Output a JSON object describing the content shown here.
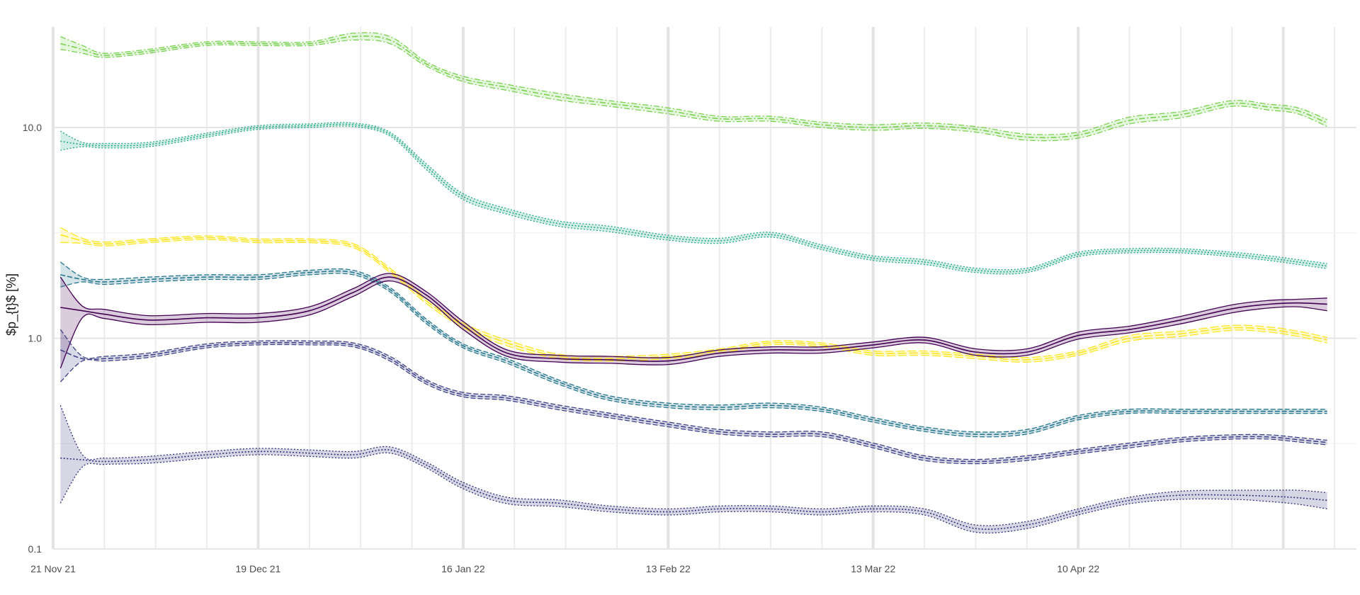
{
  "chart_data": {
    "type": "line",
    "title": "",
    "xlabel": "",
    "ylabel": "$p_{t}$ [%]",
    "y_scale": "log10",
    "ylim": [
      0.1,
      30
    ],
    "xlim": [
      "2021-11-21",
      "2022-05-18"
    ],
    "grid": true,
    "legend": "none",
    "x_ticks": [
      "21 Nov 21",
      "19 Dec 21",
      "16 Jan 22",
      "13 Feb 22",
      "13 Mar 22",
      "10 Apr 22"
    ],
    "y_ticks": [
      "0.1",
      "1.0",
      "10.0"
    ],
    "dates": [
      "2021-11-22",
      "2021-11-25",
      "2021-11-28",
      "2021-12-04",
      "2021-12-12",
      "2021-12-19",
      "2021-12-26",
      "2022-01-01",
      "2022-01-06",
      "2022-01-11",
      "2022-01-16",
      "2022-01-22",
      "2022-01-29",
      "2022-02-05",
      "2022-02-13",
      "2022-02-20",
      "2022-02-27",
      "2022-03-06",
      "2022-03-13",
      "2022-03-20",
      "2022-03-27",
      "2022-04-03",
      "2022-04-10",
      "2022-04-17",
      "2022-04-24",
      "2022-05-01",
      "2022-05-06",
      "2022-05-10",
      "2022-05-14"
    ],
    "series": [
      {
        "color": "#7ad151",
        "style": "dashdot",
        "values": [
          25,
          23.5,
          22,
          23,
          25,
          25,
          25,
          27,
          26,
          20,
          17,
          15.5,
          14,
          13,
          12,
          11,
          11,
          10.3,
          10,
          10.2,
          9.8,
          9.0,
          9.2,
          10.8,
          11.5,
          13,
          12.5,
          12,
          10.5
        ],
        "lower": [
          23.5,
          22.5,
          21.5,
          22.5,
          24.5,
          24.5,
          24.5,
          26,
          25,
          19.5,
          16.5,
          15,
          13.5,
          12.6,
          11.6,
          10.7,
          10.7,
          10.0,
          9.7,
          9.9,
          9.5,
          8.7,
          8.9,
          10.4,
          11.1,
          12.6,
          12.1,
          11.6,
          10.1
        ],
        "upper": [
          27,
          24.5,
          22.5,
          23.5,
          25.5,
          25.5,
          25.5,
          28,
          27,
          20.5,
          17.5,
          16,
          14.5,
          13.4,
          12.4,
          11.3,
          11.3,
          10.6,
          10.3,
          10.5,
          10.1,
          9.3,
          9.5,
          11.2,
          11.9,
          13.4,
          12.9,
          12.4,
          10.9
        ]
      },
      {
        "color": "#22a884",
        "style": "dotted",
        "values": [
          8.6,
          8.3,
          8.2,
          8.3,
          9.2,
          10.0,
          10.2,
          10.3,
          9.3,
          6.5,
          4.7,
          4.0,
          3.5,
          3.3,
          3.0,
          2.9,
          3.1,
          2.7,
          2.4,
          2.3,
          2.1,
          2.1,
          2.5,
          2.6,
          2.6,
          2.5,
          2.4,
          2.3,
          2.2
        ],
        "lower": [
          7.8,
          8.1,
          8.0,
          8.1,
          9.0,
          9.8,
          10.0,
          10.1,
          9.1,
          6.3,
          4.55,
          3.88,
          3.4,
          3.2,
          2.92,
          2.82,
          3.02,
          2.63,
          2.34,
          2.24,
          2.05,
          2.05,
          2.44,
          2.54,
          2.54,
          2.44,
          2.34,
          2.24,
          2.14
        ],
        "upper": [
          9.6,
          8.5,
          8.4,
          8.5,
          9.4,
          10.2,
          10.4,
          10.5,
          9.5,
          6.7,
          4.85,
          4.12,
          3.6,
          3.4,
          3.08,
          2.98,
          3.18,
          2.77,
          2.46,
          2.36,
          2.15,
          2.15,
          2.56,
          2.66,
          2.66,
          2.56,
          2.46,
          2.36,
          2.26
        ]
      },
      {
        "color": "#fde725",
        "style": "longdash",
        "values": [
          3.1,
          2.9,
          2.8,
          2.9,
          3.0,
          2.9,
          2.9,
          2.75,
          2.1,
          1.5,
          1.15,
          0.95,
          0.82,
          0.8,
          0.82,
          0.87,
          0.95,
          0.93,
          0.85,
          0.85,
          0.82,
          0.79,
          0.85,
          1.0,
          1.05,
          1.12,
          1.1,
          1.05,
          0.98
        ],
        "lower": [
          2.85,
          2.82,
          2.74,
          2.84,
          2.94,
          2.84,
          2.84,
          2.69,
          2.05,
          1.46,
          1.12,
          0.92,
          0.8,
          0.78,
          0.8,
          0.85,
          0.93,
          0.91,
          0.83,
          0.83,
          0.8,
          0.77,
          0.83,
          0.97,
          1.02,
          1.09,
          1.07,
          1.02,
          0.95
        ],
        "upper": [
          3.35,
          2.98,
          2.86,
          2.96,
          3.06,
          2.96,
          2.96,
          2.81,
          2.15,
          1.54,
          1.18,
          0.98,
          0.84,
          0.82,
          0.84,
          0.89,
          0.97,
          0.95,
          0.87,
          0.87,
          0.84,
          0.81,
          0.87,
          1.03,
          1.08,
          1.15,
          1.13,
          1.08,
          1.01
        ]
      },
      {
        "color": "#2a788e",
        "style": "dashed",
        "values": [
          2.0,
          1.9,
          1.85,
          1.9,
          1.95,
          1.95,
          2.05,
          2.05,
          1.7,
          1.2,
          0.92,
          0.78,
          0.62,
          0.52,
          0.48,
          0.47,
          0.48,
          0.46,
          0.41,
          0.37,
          0.35,
          0.36,
          0.42,
          0.45,
          0.45,
          0.45,
          0.45,
          0.45,
          0.45
        ],
        "lower": [
          1.75,
          1.85,
          1.8,
          1.85,
          1.9,
          1.9,
          2.0,
          2.0,
          1.66,
          1.17,
          0.9,
          0.76,
          0.605,
          0.507,
          0.468,
          0.458,
          0.468,
          0.449,
          0.4,
          0.361,
          0.341,
          0.351,
          0.41,
          0.44,
          0.44,
          0.44,
          0.44,
          0.44,
          0.44
        ],
        "upper": [
          2.3,
          1.95,
          1.9,
          1.95,
          2.0,
          2.0,
          2.1,
          2.1,
          1.74,
          1.23,
          0.94,
          0.8,
          0.635,
          0.533,
          0.492,
          0.482,
          0.492,
          0.471,
          0.42,
          0.379,
          0.359,
          0.369,
          0.43,
          0.46,
          0.46,
          0.46,
          0.46,
          0.46,
          0.46
        ]
      },
      {
        "color": "#440154",
        "style": "solid",
        "values": [
          1.4,
          1.35,
          1.3,
          1.22,
          1.25,
          1.25,
          1.35,
          1.65,
          1.95,
          1.6,
          1.15,
          0.85,
          0.8,
          0.79,
          0.78,
          0.85,
          0.88,
          0.88,
          0.93,
          0.98,
          0.86,
          0.86,
          1.03,
          1.1,
          1.22,
          1.38,
          1.45,
          1.47,
          1.45
        ],
        "lower": [
          0.72,
          1.25,
          1.24,
          1.16,
          1.19,
          1.19,
          1.29,
          1.58,
          1.87,
          1.54,
          1.1,
          0.82,
          0.77,
          0.76,
          0.75,
          0.82,
          0.85,
          0.85,
          0.9,
          0.95,
          0.83,
          0.83,
          0.99,
          1.06,
          1.17,
          1.32,
          1.39,
          1.41,
          1.35
        ],
        "upper": [
          1.95,
          1.42,
          1.37,
          1.28,
          1.31,
          1.31,
          1.41,
          1.72,
          2.03,
          1.66,
          1.2,
          0.88,
          0.83,
          0.82,
          0.81,
          0.88,
          0.91,
          0.91,
          0.96,
          1.01,
          0.89,
          0.89,
          1.07,
          1.14,
          1.27,
          1.44,
          1.51,
          1.53,
          1.55
        ]
      },
      {
        "color": "#414487",
        "style": "dashed",
        "values": [
          0.88,
          0.8,
          0.8,
          0.83,
          0.92,
          0.95,
          0.95,
          0.93,
          0.8,
          0.62,
          0.54,
          0.52,
          0.47,
          0.43,
          0.39,
          0.36,
          0.35,
          0.35,
          0.31,
          0.27,
          0.26,
          0.27,
          0.29,
          0.31,
          0.33,
          0.34,
          0.34,
          0.33,
          0.32
        ],
        "lower": [
          0.62,
          0.78,
          0.78,
          0.81,
          0.9,
          0.93,
          0.93,
          0.91,
          0.78,
          0.605,
          0.527,
          0.507,
          0.458,
          0.419,
          0.38,
          0.351,
          0.341,
          0.341,
          0.302,
          0.263,
          0.254,
          0.263,
          0.283,
          0.302,
          0.322,
          0.332,
          0.332,
          0.322,
          0.312
        ],
        "upper": [
          1.1,
          0.82,
          0.82,
          0.85,
          0.94,
          0.97,
          0.97,
          0.95,
          0.82,
          0.635,
          0.553,
          0.533,
          0.482,
          0.441,
          0.4,
          0.369,
          0.359,
          0.359,
          0.318,
          0.277,
          0.266,
          0.277,
          0.297,
          0.318,
          0.338,
          0.348,
          0.348,
          0.338,
          0.328
        ]
      },
      {
        "color": "#31307a",
        "style": "dotted",
        "values": [
          0.27,
          0.265,
          0.26,
          0.265,
          0.28,
          0.29,
          0.285,
          0.28,
          0.295,
          0.25,
          0.2,
          0.17,
          0.165,
          0.155,
          0.15,
          0.155,
          0.155,
          0.15,
          0.155,
          0.15,
          0.125,
          0.13,
          0.15,
          0.17,
          0.18,
          0.18,
          0.178,
          0.175,
          0.17
        ],
        "lower": [
          0.165,
          0.245,
          0.252,
          0.255,
          0.27,
          0.28,
          0.275,
          0.27,
          0.285,
          0.242,
          0.193,
          0.164,
          0.159,
          0.15,
          0.145,
          0.15,
          0.15,
          0.145,
          0.15,
          0.145,
          0.12,
          0.125,
          0.145,
          0.164,
          0.172,
          0.172,
          0.168,
          0.163,
          0.155
        ],
        "upper": [
          0.48,
          0.28,
          0.27,
          0.275,
          0.29,
          0.3,
          0.295,
          0.29,
          0.305,
          0.258,
          0.207,
          0.176,
          0.171,
          0.16,
          0.155,
          0.16,
          0.16,
          0.155,
          0.16,
          0.155,
          0.13,
          0.135,
          0.155,
          0.176,
          0.188,
          0.19,
          0.19,
          0.19,
          0.185
        ]
      }
    ]
  }
}
